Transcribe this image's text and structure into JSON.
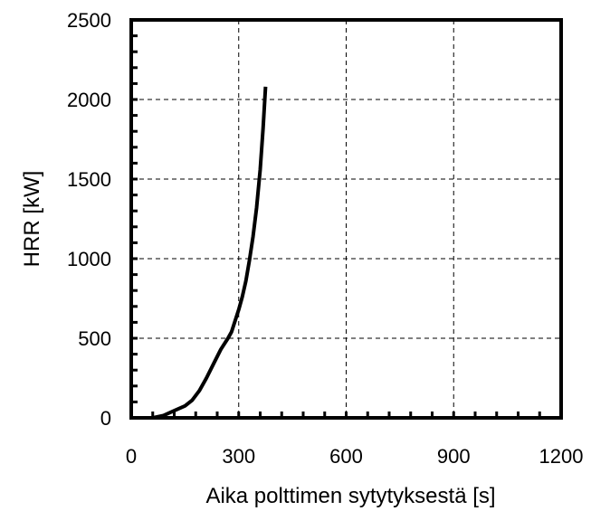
{
  "chart_data": {
    "type": "line",
    "title": "",
    "xlabel": "Aika polttimen sytytyksestä  [s]",
    "ylabel": "HRR  [kW]",
    "xlim": [
      0,
      1200
    ],
    "ylim": [
      0,
      2500
    ],
    "xticks": [
      0,
      300,
      600,
      900,
      1200
    ],
    "yticks": [
      0,
      500,
      1000,
      1500,
      2000,
      2500
    ],
    "xtick_labels": [
      "0",
      "300",
      "600",
      "900",
      "1200"
    ],
    "ytick_labels": [
      "0",
      "500",
      "1000",
      "1500",
      "2000",
      "2500"
    ],
    "x_minor_step": 60,
    "y_minor_step": 100,
    "grid": true,
    "grid_style": "dashed",
    "legend": "none",
    "series": [
      {
        "color": "#000000",
        "points": [
          [
            60,
            0
          ],
          [
            90,
            15
          ],
          [
            120,
            45
          ],
          [
            150,
            75
          ],
          [
            170,
            110
          ],
          [
            190,
            170
          ],
          [
            210,
            250
          ],
          [
            230,
            340
          ],
          [
            250,
            430
          ],
          [
            270,
            500
          ],
          [
            280,
            540
          ],
          [
            290,
            610
          ],
          [
            300,
            680
          ],
          [
            310,
            760
          ],
          [
            320,
            860
          ],
          [
            330,
            990
          ],
          [
            340,
            1140
          ],
          [
            350,
            1320
          ],
          [
            360,
            1560
          ],
          [
            368,
            1820
          ],
          [
            375,
            2080
          ]
        ]
      }
    ]
  }
}
